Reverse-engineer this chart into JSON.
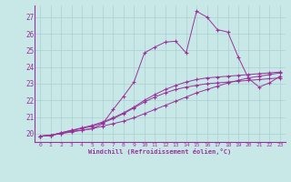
{
  "xlabel": "Windchill (Refroidissement éolien,°C)",
  "bg_color": "#c8e8e8",
  "grid_color": "#a8d0d0",
  "line_color": "#993399",
  "spine_color": "#993399",
  "xlim": [
    -0.5,
    23.5
  ],
  "ylim": [
    19.5,
    27.7
  ],
  "xticks": [
    0,
    1,
    2,
    3,
    4,
    5,
    6,
    7,
    8,
    9,
    10,
    11,
    12,
    13,
    14,
    15,
    16,
    17,
    18,
    19,
    20,
    21,
    22,
    23
  ],
  "yticks": [
    20,
    21,
    22,
    23,
    24,
    25,
    26,
    27
  ],
  "series": [
    {
      "x": [
        0,
        1,
        2,
        3,
        4,
        5,
        6,
        7,
        8,
        9,
        10,
        11,
        12,
        13,
        14,
        15,
        16,
        17,
        18,
        19,
        20,
        21,
        22,
        23
      ],
      "y": [
        19.85,
        19.9,
        20.0,
        20.1,
        20.2,
        20.3,
        20.45,
        20.6,
        20.75,
        20.95,
        21.2,
        21.45,
        21.7,
        21.95,
        22.2,
        22.45,
        22.65,
        22.85,
        23.05,
        23.2,
        23.35,
        23.45,
        23.55,
        23.65
      ]
    },
    {
      "x": [
        0,
        1,
        2,
        3,
        4,
        5,
        6,
        7,
        8,
        9,
        10,
        11,
        12,
        13,
        14,
        15,
        16,
        17,
        18,
        19,
        20,
        21,
        22,
        23
      ],
      "y": [
        19.85,
        19.9,
        20.05,
        20.2,
        20.3,
        20.45,
        20.65,
        20.9,
        21.2,
        21.55,
        21.9,
        22.2,
        22.45,
        22.65,
        22.8,
        22.9,
        23.0,
        23.05,
        23.1,
        23.15,
        23.2,
        23.25,
        23.3,
        23.35
      ]
    },
    {
      "x": [
        0,
        1,
        2,
        3,
        4,
        5,
        6,
        7,
        8,
        9,
        10,
        11,
        12,
        13,
        14,
        15,
        16,
        17,
        18,
        19,
        20,
        21,
        22,
        23
      ],
      "y": [
        19.85,
        19.9,
        20.05,
        20.2,
        20.35,
        20.5,
        20.7,
        20.95,
        21.25,
        21.6,
        22.0,
        22.35,
        22.65,
        22.9,
        23.1,
        23.25,
        23.35,
        23.4,
        23.45,
        23.5,
        23.55,
        23.6,
        23.65,
        23.7
      ]
    },
    {
      "x": [
        0,
        1,
        2,
        3,
        4,
        5,
        6,
        7,
        8,
        9,
        10,
        11,
        12,
        13,
        14,
        15,
        16,
        17,
        18,
        19,
        20,
        21,
        22,
        23
      ],
      "y": [
        19.85,
        19.9,
        20.0,
        20.15,
        20.2,
        20.3,
        20.6,
        21.45,
        22.25,
        23.1,
        24.85,
        25.2,
        25.5,
        25.55,
        24.85,
        27.35,
        27.0,
        26.25,
        26.1,
        24.6,
        23.3,
        22.8,
        23.05,
        23.45
      ]
    }
  ]
}
